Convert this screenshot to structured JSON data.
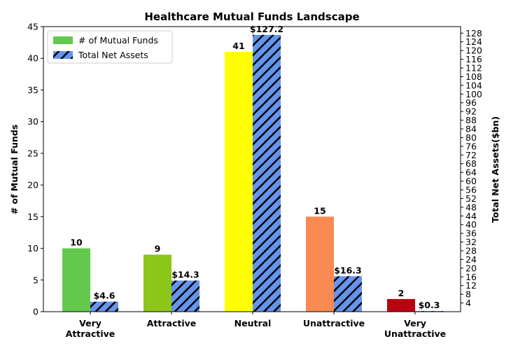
{
  "chart_data": {
    "type": "bar",
    "title": "Healthcare Mutual Funds Landscape",
    "y_label": "# of Mutual Funds",
    "y2_label": "Total Net Assets($bn)",
    "categories": [
      "Very\nAttractive",
      "Attractive",
      "Neutral",
      "Unattractive",
      "Very\nUnattractive"
    ],
    "series": [
      {
        "name": "# of Mutual Funds",
        "colors": [
          "#63c94d",
          "#8cc618",
          "#ffff00",
          "#f98a52",
          "#bb0010"
        ],
        "legend_color": "#63c94d",
        "values": [
          10,
          9,
          41,
          15,
          2
        ]
      },
      {
        "name": "Total Net Assets",
        "color": "#6495ed",
        "hatch": true,
        "axis": "y2",
        "values": [
          4.6,
          14.3,
          127.2,
          16.3,
          0.3
        ],
        "value_labels": [
          "$4.6",
          "$14.3",
          "$127.2",
          "$16.3",
          "$0.3"
        ]
      }
    ],
    "ylim": [
      0,
      45
    ],
    "yticks": [
      0,
      5,
      10,
      15,
      20,
      25,
      30,
      35,
      40,
      45
    ],
    "y2lim": [
      0,
      131
    ],
    "y2ticks": [
      4,
      8,
      12,
      16,
      20,
      24,
      28,
      32,
      36,
      40,
      44,
      48,
      52,
      56,
      60,
      64,
      68,
      72,
      76,
      80,
      84,
      88,
      92,
      96,
      100,
      104,
      108,
      112,
      116,
      120,
      124,
      128
    ],
    "legend": "upper left"
  }
}
